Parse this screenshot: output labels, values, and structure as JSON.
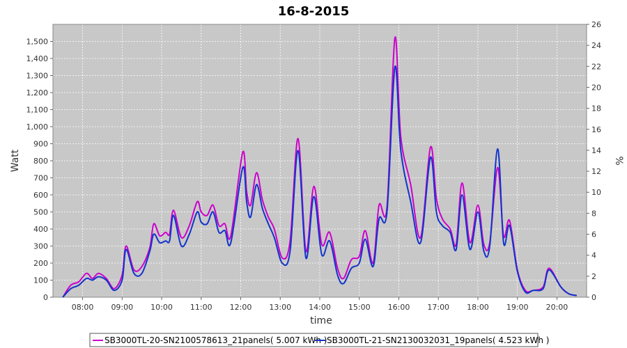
{
  "chart_data": {
    "type": "line",
    "title": "16-8-2015",
    "xlabel": "time",
    "ylabel": "Watt",
    "y2label": "%",
    "xlim": [
      7.25,
      20.75
    ],
    "ylim": [
      0,
      1600
    ],
    "y2lim": [
      0,
      26
    ],
    "x_ticks": [
      8,
      9,
      10,
      11,
      12,
      13,
      14,
      15,
      16,
      17,
      18,
      19,
      20
    ],
    "x_tick_labels": [
      "08:00",
      "09:00",
      "10:00",
      "11:00",
      "12:00",
      "13:00",
      "14:00",
      "15:00",
      "16:00",
      "17:00",
      "18:00",
      "19:00",
      "20:00"
    ],
    "y_ticks": [
      0,
      100,
      200,
      300,
      400,
      500,
      600,
      700,
      800,
      900,
      1000,
      1100,
      1200,
      1300,
      1400,
      1500
    ],
    "y_tick_labels": [
      "0",
      "100",
      "200",
      "300",
      "400",
      "500",
      "600",
      "700",
      "800",
      "900",
      "1,000",
      "1,100",
      "1,200",
      "1,300",
      "1,400",
      "1,500"
    ],
    "y2_ticks": [
      0,
      2,
      4,
      6,
      8,
      10,
      12,
      14,
      16,
      18,
      20,
      22,
      24,
      26
    ],
    "y2_tick_labels": [
      "0",
      "2",
      "4",
      "6",
      "8",
      "10",
      "12",
      "14",
      "16",
      "18",
      "20",
      "22",
      "24",
      "26"
    ],
    "grid": true,
    "legend_position": "bottom",
    "background_color": "#c8c8c8",
    "series": [
      {
        "name": "SB3000TL-20-SN2100578613_21panels( 5.007 kWh )",
        "color": "#cc00cc",
        "x": [
          7.5,
          7.7,
          7.9,
          8.1,
          8.25,
          8.4,
          8.6,
          8.8,
          9.0,
          9.1,
          9.3,
          9.5,
          9.7,
          9.8,
          9.95,
          10.1,
          10.2,
          10.3,
          10.5,
          10.7,
          10.9,
          11.0,
          11.15,
          11.3,
          11.45,
          11.6,
          11.75,
          12.05,
          12.15,
          12.25,
          12.4,
          12.55,
          12.7,
          12.85,
          13.05,
          13.25,
          13.45,
          13.65,
          13.85,
          14.05,
          14.25,
          14.45,
          14.6,
          14.8,
          15.0,
          15.15,
          15.35,
          15.5,
          15.7,
          15.9,
          16.05,
          16.3,
          16.55,
          16.8,
          16.95,
          17.1,
          17.3,
          17.45,
          17.6,
          17.8,
          18.0,
          18.15,
          18.3,
          18.5,
          18.65,
          18.8,
          19.0,
          19.2,
          19.4,
          19.65,
          19.8,
          20.1,
          20.3,
          20.5
        ],
        "y": [
          0,
          70,
          90,
          140,
          110,
          140,
          110,
          50,
          130,
          300,
          160,
          180,
          290,
          430,
          360,
          380,
          370,
          510,
          350,
          420,
          560,
          500,
          480,
          540,
          420,
          430,
          360,
          850,
          620,
          540,
          730,
          570,
          470,
          400,
          230,
          330,
          930,
          270,
          650,
          310,
          380,
          170,
          110,
          220,
          240,
          390,
          200,
          540,
          530,
          1520,
          940,
          660,
          350,
          880,
          580,
          460,
          400,
          310,
          670,
          320,
          540,
          310,
          320,
          760,
          360,
          450,
          160,
          40,
          40,
          60,
          170,
          60,
          20,
          10
        ]
      },
      {
        "name": "SB3000TL-21-SN2130032031_19panels( 4.523 kWh )",
        "color": "#1133cc",
        "x": [
          7.5,
          7.7,
          7.9,
          8.1,
          8.25,
          8.4,
          8.6,
          8.8,
          9.0,
          9.1,
          9.3,
          9.5,
          9.7,
          9.8,
          9.95,
          10.1,
          10.2,
          10.3,
          10.5,
          10.7,
          10.9,
          11.0,
          11.15,
          11.3,
          11.45,
          11.6,
          11.75,
          12.05,
          12.15,
          12.25,
          12.4,
          12.55,
          12.7,
          12.85,
          13.05,
          13.25,
          13.45,
          13.65,
          13.85,
          14.05,
          14.25,
          14.45,
          14.6,
          14.8,
          15.0,
          15.15,
          15.35,
          15.5,
          15.7,
          15.9,
          16.05,
          16.3,
          16.55,
          16.8,
          16.95,
          17.1,
          17.3,
          17.45,
          17.6,
          17.8,
          18.0,
          18.15,
          18.3,
          18.5,
          18.65,
          18.8,
          19.0,
          19.2,
          19.4,
          19.65,
          19.8,
          20.1,
          20.3,
          20.5
        ],
        "y": [
          0,
          50,
          70,
          110,
          100,
          120,
          100,
          40,
          100,
          280,
          140,
          140,
          270,
          370,
          320,
          330,
          330,
          480,
          300,
          370,
          500,
          440,
          430,
          500,
          380,
          390,
          320,
          760,
          560,
          470,
          660,
          520,
          430,
          350,
          200,
          270,
          860,
          230,
          590,
          250,
          330,
          130,
          80,
          170,
          200,
          340,
          180,
          460,
          500,
          1350,
          860,
          560,
          320,
          820,
          500,
          420,
          380,
          280,
          600,
          280,
          500,
          270,
          300,
          870,
          320,
          420,
          150,
          30,
          40,
          50,
          160,
          60,
          20,
          10
        ]
      }
    ]
  }
}
